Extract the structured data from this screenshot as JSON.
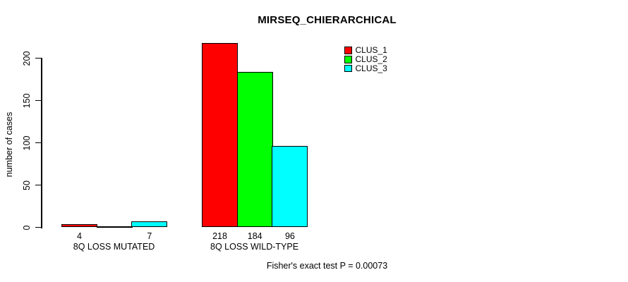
{
  "chart_data": {
    "type": "bar",
    "title": "MIRSEQ_CHIERARCHICAL",
    "ylabel": "number of cases",
    "xlabel": "",
    "categories": [
      "8Q LOSS MUTATED",
      "8Q LOSS WILD-TYPE"
    ],
    "series": [
      {
        "name": "CLUS_1",
        "color": "#ff0000",
        "values": [
          4,
          218
        ]
      },
      {
        "name": "CLUS_2",
        "color": "#00ff00",
        "values": [
          0,
          184
        ]
      },
      {
        "name": "CLUS_3",
        "color": "#00ffff",
        "values": [
          7,
          96
        ]
      }
    ],
    "bar_value_labels": [
      [
        "4",
        "",
        "7"
      ],
      [
        "218",
        "184",
        "96"
      ]
    ],
    "yticks": [
      "0",
      "50",
      "100",
      "150",
      "200"
    ],
    "ylim": [
      0,
      218
    ],
    "grid": false,
    "legend_position": "top-right",
    "annotation": "Fisher's exact test P = 0.00073",
    "bar_border_color": "#000000",
    "axis_color": "#000000",
    "background_color": "#ffffff"
  }
}
